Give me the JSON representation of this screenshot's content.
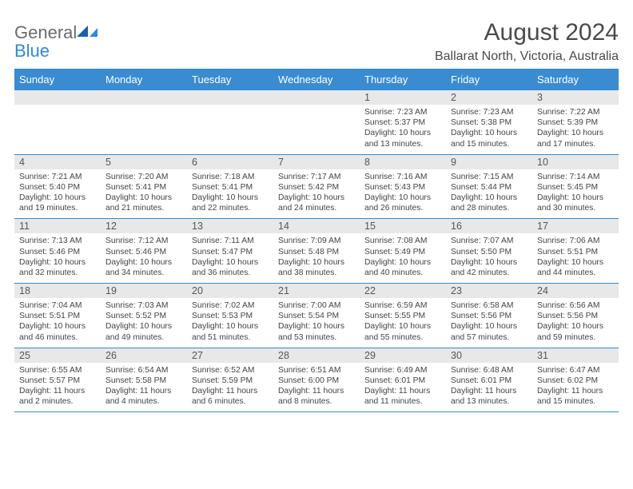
{
  "logo": {
    "text1": "General",
    "text2": "Blue",
    "color1": "#6b6b6b",
    "color2": "#2e8bd6"
  },
  "title": "August 2024",
  "location": "Ballarat North, Victoria, Australia",
  "colors": {
    "header_bg": "#3b8bd0",
    "border": "#2e8bd6",
    "daynum_bg": "#e8e8e8",
    "text": "#444444"
  },
  "day_headers": [
    "Sunday",
    "Monday",
    "Tuesday",
    "Wednesday",
    "Thursday",
    "Friday",
    "Saturday"
  ],
  "weeks": [
    [
      null,
      null,
      null,
      null,
      {
        "n": "1",
        "sunrise": "7:23 AM",
        "sunset": "5:37 PM",
        "daylight": "10 hours and 13 minutes."
      },
      {
        "n": "2",
        "sunrise": "7:23 AM",
        "sunset": "5:38 PM",
        "daylight": "10 hours and 15 minutes."
      },
      {
        "n": "3",
        "sunrise": "7:22 AM",
        "sunset": "5:39 PM",
        "daylight": "10 hours and 17 minutes."
      }
    ],
    [
      {
        "n": "4",
        "sunrise": "7:21 AM",
        "sunset": "5:40 PM",
        "daylight": "10 hours and 19 minutes."
      },
      {
        "n": "5",
        "sunrise": "7:20 AM",
        "sunset": "5:41 PM",
        "daylight": "10 hours and 21 minutes."
      },
      {
        "n": "6",
        "sunrise": "7:18 AM",
        "sunset": "5:41 PM",
        "daylight": "10 hours and 22 minutes."
      },
      {
        "n": "7",
        "sunrise": "7:17 AM",
        "sunset": "5:42 PM",
        "daylight": "10 hours and 24 minutes."
      },
      {
        "n": "8",
        "sunrise": "7:16 AM",
        "sunset": "5:43 PM",
        "daylight": "10 hours and 26 minutes."
      },
      {
        "n": "9",
        "sunrise": "7:15 AM",
        "sunset": "5:44 PM",
        "daylight": "10 hours and 28 minutes."
      },
      {
        "n": "10",
        "sunrise": "7:14 AM",
        "sunset": "5:45 PM",
        "daylight": "10 hours and 30 minutes."
      }
    ],
    [
      {
        "n": "11",
        "sunrise": "7:13 AM",
        "sunset": "5:46 PM",
        "daylight": "10 hours and 32 minutes."
      },
      {
        "n": "12",
        "sunrise": "7:12 AM",
        "sunset": "5:46 PM",
        "daylight": "10 hours and 34 minutes."
      },
      {
        "n": "13",
        "sunrise": "7:11 AM",
        "sunset": "5:47 PM",
        "daylight": "10 hours and 36 minutes."
      },
      {
        "n": "14",
        "sunrise": "7:09 AM",
        "sunset": "5:48 PM",
        "daylight": "10 hours and 38 minutes."
      },
      {
        "n": "15",
        "sunrise": "7:08 AM",
        "sunset": "5:49 PM",
        "daylight": "10 hours and 40 minutes."
      },
      {
        "n": "16",
        "sunrise": "7:07 AM",
        "sunset": "5:50 PM",
        "daylight": "10 hours and 42 minutes."
      },
      {
        "n": "17",
        "sunrise": "7:06 AM",
        "sunset": "5:51 PM",
        "daylight": "10 hours and 44 minutes."
      }
    ],
    [
      {
        "n": "18",
        "sunrise": "7:04 AM",
        "sunset": "5:51 PM",
        "daylight": "10 hours and 46 minutes."
      },
      {
        "n": "19",
        "sunrise": "7:03 AM",
        "sunset": "5:52 PM",
        "daylight": "10 hours and 49 minutes."
      },
      {
        "n": "20",
        "sunrise": "7:02 AM",
        "sunset": "5:53 PM",
        "daylight": "10 hours and 51 minutes."
      },
      {
        "n": "21",
        "sunrise": "7:00 AM",
        "sunset": "5:54 PM",
        "daylight": "10 hours and 53 minutes."
      },
      {
        "n": "22",
        "sunrise": "6:59 AM",
        "sunset": "5:55 PM",
        "daylight": "10 hours and 55 minutes."
      },
      {
        "n": "23",
        "sunrise": "6:58 AM",
        "sunset": "5:56 PM",
        "daylight": "10 hours and 57 minutes."
      },
      {
        "n": "24",
        "sunrise": "6:56 AM",
        "sunset": "5:56 PM",
        "daylight": "10 hours and 59 minutes."
      }
    ],
    [
      {
        "n": "25",
        "sunrise": "6:55 AM",
        "sunset": "5:57 PM",
        "daylight": "11 hours and 2 minutes."
      },
      {
        "n": "26",
        "sunrise": "6:54 AM",
        "sunset": "5:58 PM",
        "daylight": "11 hours and 4 minutes."
      },
      {
        "n": "27",
        "sunrise": "6:52 AM",
        "sunset": "5:59 PM",
        "daylight": "11 hours and 6 minutes."
      },
      {
        "n": "28",
        "sunrise": "6:51 AM",
        "sunset": "6:00 PM",
        "daylight": "11 hours and 8 minutes."
      },
      {
        "n": "29",
        "sunrise": "6:49 AM",
        "sunset": "6:01 PM",
        "daylight": "11 hours and 11 minutes."
      },
      {
        "n": "30",
        "sunrise": "6:48 AM",
        "sunset": "6:01 PM",
        "daylight": "11 hours and 13 minutes."
      },
      {
        "n": "31",
        "sunrise": "6:47 AM",
        "sunset": "6:02 PM",
        "daylight": "11 hours and 15 minutes."
      }
    ]
  ],
  "labels": {
    "sunrise": "Sunrise: ",
    "sunset": "Sunset: ",
    "daylight": "Daylight: "
  }
}
